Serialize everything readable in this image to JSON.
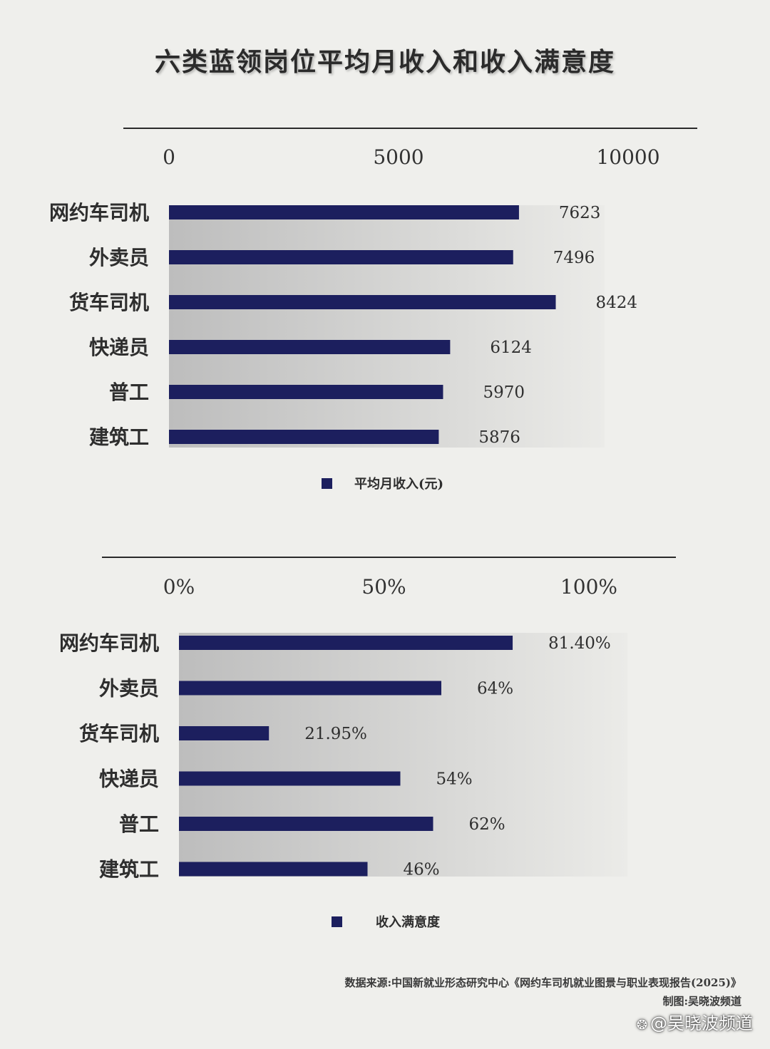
{
  "title": "六类蓝领岗位平均月收入和收入满意度",
  "chart_data": [
    {
      "type": "bar",
      "orientation": "horizontal",
      "categories": [
        "网约车司机",
        "外卖员",
        "货车司机",
        "快递员",
        "普工",
        "建筑工"
      ],
      "series": [
        {
          "name": "平均月收入(元)",
          "values": [
            7623,
            7496,
            8424,
            6124,
            5970,
            5876
          ]
        }
      ],
      "data_labels": [
        "7623",
        "7496",
        "8424",
        "6124",
        "5970",
        "5876"
      ],
      "xlim": [
        0,
        10000
      ],
      "ticks": [
        0,
        5000,
        10000
      ],
      "tick_labels": [
        "0",
        "5000",
        "10000"
      ],
      "legend_position": "bottom-center",
      "bar_color": "#1c1f5e"
    },
    {
      "type": "bar",
      "orientation": "horizontal",
      "categories": [
        "网约车司机",
        "外卖员",
        "货车司机",
        "快递员",
        "普工",
        "建筑工"
      ],
      "series": [
        {
          "name": "收入满意度",
          "values": [
            81.4,
            64,
            21.95,
            54,
            62,
            46
          ]
        }
      ],
      "data_labels": [
        "81.40%",
        "64%",
        "21.95%",
        "54%",
        "62%",
        "46%"
      ],
      "xlim": [
        0,
        100
      ],
      "ticks": [
        0,
        50,
        100
      ],
      "tick_labels": [
        "0%",
        "50%",
        "100%"
      ],
      "legend_position": "bottom-center",
      "bar_color": "#1c1f5e"
    }
  ],
  "footer": {
    "source": "数据来源:中国新就业形态研究中心《网约车司机就业图景与职业表现报告(2025)》",
    "credit": "制图:吴晓波频道"
  },
  "watermark": {
    "icon": "chat-bubble-icon",
    "text": "@吴晓波频道"
  }
}
